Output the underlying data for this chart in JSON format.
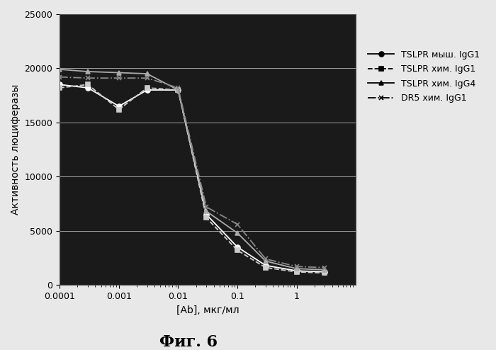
{
  "title": "",
  "xlabel": "[Ab], мкг/мл",
  "ylabel": "Активность люциферазы",
  "fig_caption": "Фиг. 6",
  "ylim": [
    0,
    25000
  ],
  "xlim": [
    0.0001,
    10
  ],
  "yticks": [
    0,
    5000,
    10000,
    15000,
    20000,
    25000
  ],
  "plot_bg_color": "#1a1a1a",
  "fig_bg_color": "#e8e8e8",
  "line_color": "#ffffff",
  "xtick_labels": [
    "0.0001",
    "0.001",
    "0.01",
    "0.1",
    "1"
  ],
  "xtick_positions": [
    0.0001,
    0.001,
    0.01,
    0.1,
    1
  ],
  "series": [
    {
      "label": "TSLPR мыш. IgG1",
      "marker": "o",
      "linestyle": "-",
      "color": "#ffffff",
      "x": [
        0.0001,
        0.0003,
        0.001,
        0.003,
        0.01,
        0.03,
        0.1,
        0.3,
        1,
        3
      ],
      "y": [
        18500,
        18200,
        16500,
        18000,
        18000,
        6500,
        3500,
        1800,
        1300,
        1200
      ]
    },
    {
      "label": "TSLPR хим. IgG1",
      "marker": "s",
      "linestyle": "--",
      "color": "#cccccc",
      "x": [
        0.0001,
        0.0003,
        0.001,
        0.003,
        0.01,
        0.03,
        0.1,
        0.3,
        1,
        3
      ],
      "y": [
        18200,
        18500,
        16200,
        18200,
        18000,
        6200,
        3200,
        1600,
        1200,
        1100
      ]
    },
    {
      "label": "TSLPR хим. IgG4",
      "marker": "^",
      "linestyle": "-",
      "color": "#aaaaaa",
      "x": [
        0.0001,
        0.0003,
        0.001,
        0.003,
        0.01,
        0.03,
        0.1,
        0.3,
        1,
        3
      ],
      "y": [
        19900,
        19700,
        19600,
        19500,
        18000,
        6800,
        4800,
        2200,
        1500,
        1400
      ]
    },
    {
      "label": "DR5 хим. IgG1",
      "marker": "x",
      "linestyle": "-.",
      "color": "#888888",
      "x": [
        0.0001,
        0.0003,
        0.001,
        0.003,
        0.01,
        0.03,
        0.1,
        0.3,
        1,
        3
      ],
      "y": [
        19200,
        19100,
        19100,
        19100,
        18200,
        7200,
        5600,
        2400,
        1700,
        1600
      ]
    }
  ]
}
